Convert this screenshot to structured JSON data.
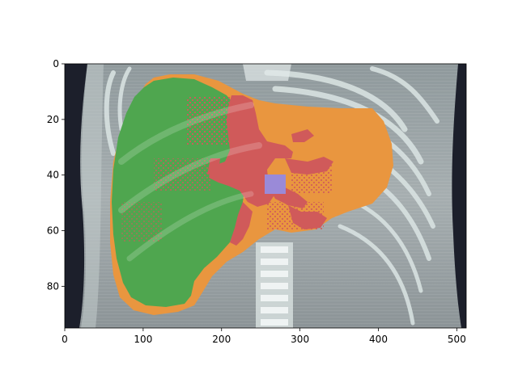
{
  "figure": {
    "x_ticks": [
      "0",
      "100",
      "200",
      "300",
      "400",
      "500"
    ],
    "x_tick_values": [
      0,
      100,
      200,
      300,
      400,
      500
    ],
    "y_ticks": [
      "0",
      "20",
      "40",
      "60",
      "80"
    ],
    "y_tick_values": [
      0,
      20,
      40,
      60,
      80
    ],
    "x_range": [
      0,
      512
    ],
    "y_range": [
      95,
      0
    ],
    "colors": {
      "ct_background": "#9aa3a6",
      "ct_dark": "#1c1f2b",
      "bone": "#d8e2e2",
      "segment_green": "#4fa64f",
      "segment_orange": "#e9963f",
      "segment_red": "#d05a5a",
      "segment_purple": "#9a8ad8"
    }
  }
}
